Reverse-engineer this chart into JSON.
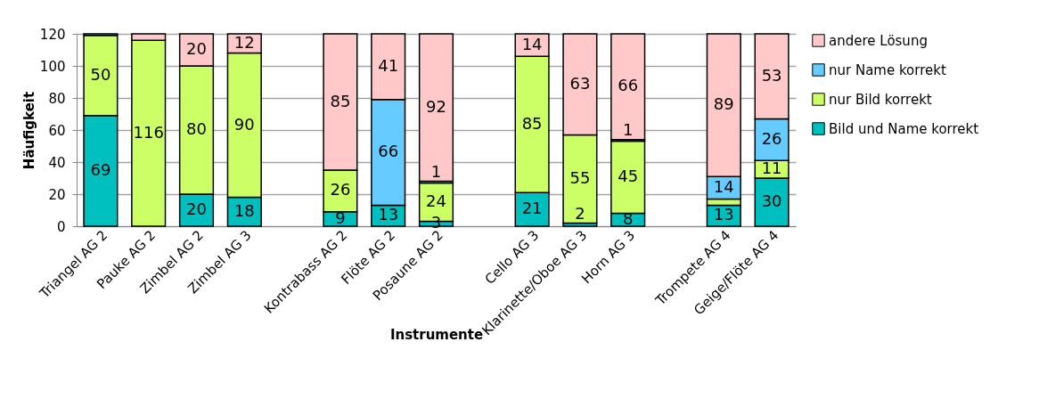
{
  "chart_data": {
    "type": "bar",
    "stacked": true,
    "xlabel": "Instrumente",
    "ylabel": "Häufigkeit",
    "categories": [
      "Triangel AG 2",
      "Pauke AG 2",
      "Zimbel AG 2",
      "Zimbel AG 3",
      null,
      "Kontrabass AG 2",
      "Flöte AG 2",
      "Posaune AG 2",
      null,
      "Cello AG 3",
      "Klarinette/Oboe AG 3",
      "Horn AG 3",
      null,
      "Trompete AG 4",
      "Geige/Flöte AG 4"
    ],
    "ylim": [
      0,
      120
    ],
    "yticks": [
      0,
      20,
      40,
      60,
      80,
      100,
      120
    ],
    "grid": "y",
    "legend": "right",
    "series": [
      {
        "name": "Bild und Name korrekt",
        "color": "#00bfbf",
        "values": [
          69,
          null,
          20,
          18,
          null,
          9,
          13,
          3,
          null,
          21,
          2,
          8,
          null,
          13,
          30
        ],
        "value_labels": [
          "69",
          null,
          "20",
          "18",
          null,
          "9",
          "13",
          "3",
          null,
          "21",
          "2",
          "8",
          null,
          "13",
          "30"
        ]
      },
      {
        "name": "nur Bild korrekt",
        "color": "#ccff66",
        "values": [
          50,
          116,
          80,
          90,
          null,
          26,
          null,
          24,
          null,
          85,
          55,
          45,
          null,
          4,
          11
        ],
        "value_labels": [
          "50",
          "116",
          "80",
          "90",
          null,
          "26",
          null,
          "24",
          null,
          "85",
          "55",
          "45",
          null,
          null,
          "11"
        ]
      },
      {
        "name": "nur Name korrekt",
        "color": "#66ccff",
        "values": [
          1,
          null,
          null,
          null,
          null,
          null,
          66,
          1,
          null,
          null,
          null,
          1,
          null,
          14,
          26
        ],
        "value_labels": [
          null,
          null,
          null,
          null,
          null,
          null,
          "66",
          "1",
          null,
          null,
          null,
          "1",
          null,
          "14",
          "26"
        ]
      },
      {
        "name": "andere Lösung",
        "color": "#ffc9c9",
        "values": [
          null,
          4,
          20,
          12,
          null,
          85,
          41,
          92,
          null,
          14,
          63,
          66,
          null,
          89,
          53
        ],
        "value_labels": [
          null,
          null,
          "20",
          "12",
          null,
          "85",
          "41",
          "92",
          null,
          "14",
          "63",
          "66",
          null,
          "89",
          "53"
        ]
      }
    ]
  }
}
